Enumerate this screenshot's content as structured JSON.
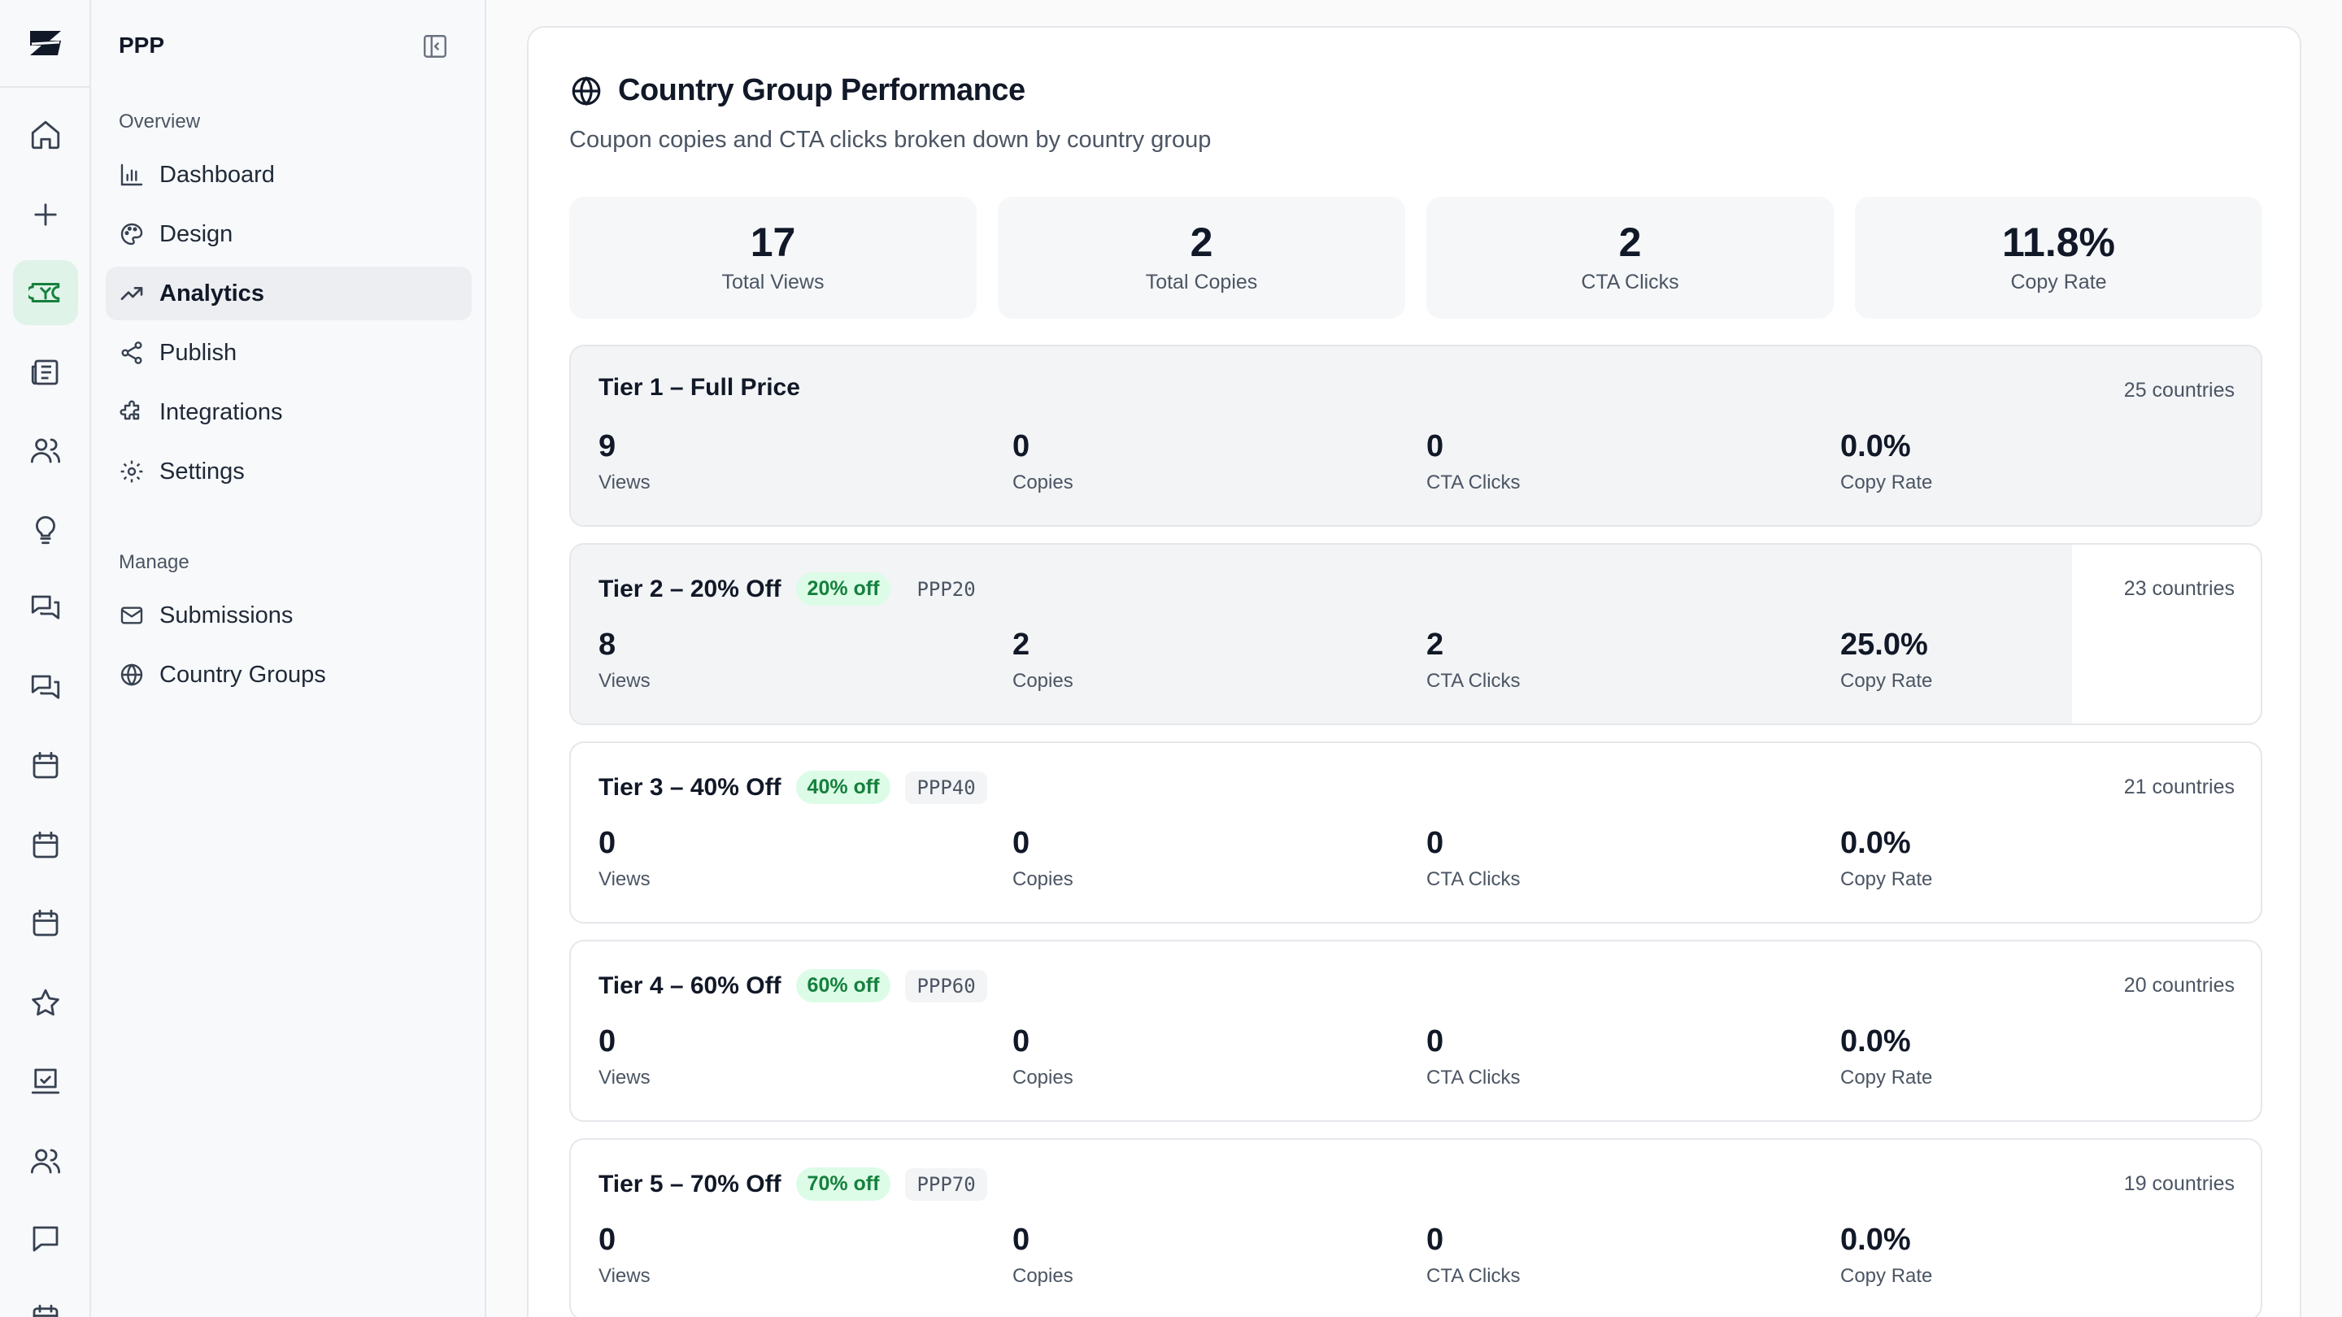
{
  "sidebar": {
    "title": "PPP",
    "sections": {
      "overview": "Overview",
      "manage": "Manage"
    },
    "items": [
      {
        "label": "Dashboard",
        "icon": "bar-chart-icon"
      },
      {
        "label": "Design",
        "icon": "palette-icon"
      },
      {
        "label": "Analytics",
        "icon": "trending-up-icon",
        "active": true
      },
      {
        "label": "Publish",
        "icon": "share-icon"
      },
      {
        "label": "Integrations",
        "icon": "puzzle-icon"
      },
      {
        "label": "Settings",
        "icon": "gear-icon"
      },
      {
        "label": "Submissions",
        "icon": "mail-icon"
      },
      {
        "label": "Country Groups",
        "icon": "globe-icon"
      }
    ]
  },
  "rail": {
    "icons": [
      "home-icon",
      "plus-icon",
      "ticket-icon",
      "newspaper-icon",
      "users-icon",
      "lightbulb-icon",
      "messages-icon",
      "messages-icon",
      "calendar-icon",
      "calendar-icon",
      "calendar-icon",
      "star-icon",
      "presentation-check-icon",
      "users-icon",
      "message-square-icon",
      "calendar-icon"
    ]
  },
  "main": {
    "title": "Country Group Performance",
    "subtitle": "Coupon copies and CTA clicks broken down by country group",
    "stats": [
      {
        "value": "17",
        "label": "Total Views"
      },
      {
        "value": "2",
        "label": "Total Copies"
      },
      {
        "value": "2",
        "label": "CTA Clicks"
      },
      {
        "value": "11.8%",
        "label": "Copy Rate"
      }
    ],
    "metric_labels": {
      "views": "Views",
      "copies": "Copies",
      "cta": "CTA Clicks",
      "rate": "Copy Rate"
    },
    "tiers": [
      {
        "name": "Tier 1 – Full Price",
        "discount": "",
        "code": "",
        "countries": "25 countries",
        "views": "9",
        "copies": "0",
        "cta": "0",
        "rate": "0.0%"
      },
      {
        "name": "Tier 2 – 20% Off",
        "discount": "20% off",
        "code": "PPP20",
        "countries": "23 countries",
        "views": "8",
        "copies": "2",
        "cta": "2",
        "rate": "25.0%"
      },
      {
        "name": "Tier 3 – 40% Off",
        "discount": "40% off",
        "code": "PPP40",
        "countries": "21 countries",
        "views": "0",
        "copies": "0",
        "cta": "0",
        "rate": "0.0%"
      },
      {
        "name": "Tier 4 – 60% Off",
        "discount": "60% off",
        "code": "PPP60",
        "countries": "20 countries",
        "views": "0",
        "copies": "0",
        "cta": "0",
        "rate": "0.0%"
      },
      {
        "name": "Tier 5 – 70% Off",
        "discount": "70% off",
        "code": "PPP70",
        "countries": "19 countries",
        "views": "0",
        "copies": "0",
        "cta": "0",
        "rate": "0.0%"
      }
    ]
  },
  "colors": {
    "accent": "#15803d",
    "accent_bg": "#dcfce7",
    "active_rail_bg": "#dff3e8"
  }
}
